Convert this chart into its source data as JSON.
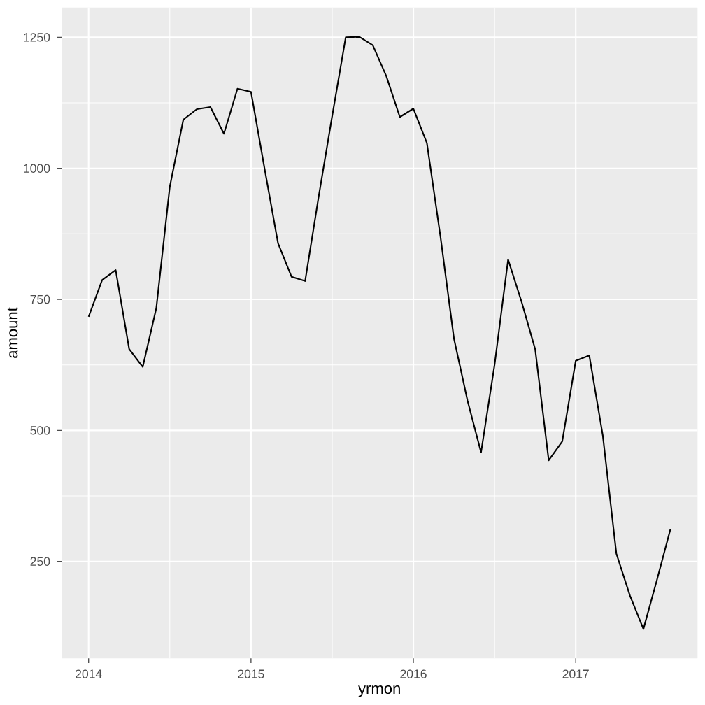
{
  "chart_data": {
    "type": "line",
    "xlabel": "yrmon",
    "ylabel": "amount",
    "x": [
      "2014-01",
      "2014-02",
      "2014-03",
      "2014-04",
      "2014-05",
      "2014-06",
      "2014-07",
      "2014-08",
      "2014-09",
      "2014-10",
      "2014-11",
      "2014-12",
      "2015-01",
      "2015-02",
      "2015-03",
      "2015-04",
      "2015-05",
      "2015-06",
      "2015-07",
      "2015-08",
      "2015-09",
      "2015-10",
      "2015-11",
      "2015-12",
      "2016-01",
      "2016-02",
      "2016-03",
      "2016-04",
      "2016-05",
      "2016-06",
      "2016-07",
      "2016-08",
      "2016-09",
      "2016-10",
      "2016-11",
      "2016-12",
      "2017-01",
      "2017-02",
      "2017-03",
      "2017-04",
      "2017-05",
      "2017-06",
      "2017-07",
      "2017-08"
    ],
    "series": [
      {
        "color": "#000000",
        "values": [
          717,
          787,
          806,
          655,
          621,
          733,
          965,
          1093,
          1113,
          1117,
          1066,
          1152,
          1146,
          1000,
          857,
          793,
          785,
          946,
          1100,
          1250,
          1251,
          1235,
          1176,
          1098,
          1114,
          1048,
          870,
          675,
          557,
          458,
          625,
          826,
          745,
          655,
          443,
          479,
          633,
          643,
          490,
          265,
          185,
          121,
          215,
          312
        ]
      }
    ],
    "xlim": [
      "2013-11",
      "2017-10"
    ],
    "ylim": [
      65,
      1307
    ],
    "xticks": [
      {
        "value": "2014",
        "label": "2014"
      },
      {
        "value": "2015",
        "label": "2015"
      },
      {
        "value": "2016",
        "label": "2016"
      },
      {
        "value": "2017",
        "label": "2017"
      }
    ],
    "yticks": [
      250,
      500,
      750,
      1000,
      1250
    ],
    "grid": true,
    "marker": "none",
    "line_style": "solid"
  }
}
